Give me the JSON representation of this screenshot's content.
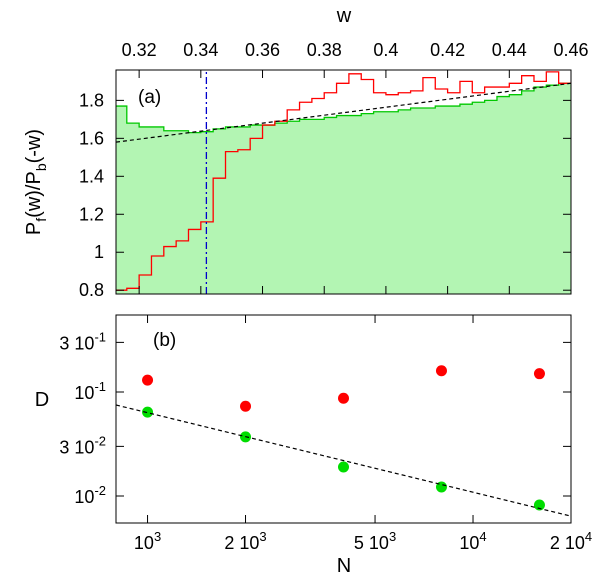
{
  "chart_data": [
    {
      "panel_label": "(a)",
      "type": "step",
      "xlabel": "w",
      "ylabel_main": "P",
      "ylabel_sub1": "f",
      "ylabel_mid": "(w)/P",
      "ylabel_sub2": "b",
      "ylabel_end": "(-w)",
      "xlim": [
        0.3125,
        0.46
      ],
      "ylim": [
        0.78,
        1.96
      ],
      "xticks": [
        0.32,
        0.34,
        0.36,
        0.38,
        0.4,
        0.42,
        0.44,
        0.46
      ],
      "xtick_labels": [
        "0.32",
        "0.34",
        "0.36",
        "0.38",
        "0.4",
        "0.42",
        "0.44",
        "0.46"
      ],
      "yticks": [
        0.8,
        1.0,
        1.2,
        1.4,
        1.6,
        1.8
      ],
      "ytick_labels": [
        "0.8",
        "1",
        "1.2",
        "1.4",
        "1.6",
        "1.8"
      ],
      "series": [
        {
          "style": "filled-step",
          "color": "#00c800",
          "fill": "#b3f5b3",
          "bin_edges": [
            0.3125,
            0.316,
            0.32,
            0.324,
            0.328,
            0.332,
            0.336,
            0.34,
            0.344,
            0.348,
            0.352,
            0.356,
            0.36,
            0.364,
            0.368,
            0.372,
            0.376,
            0.38,
            0.384,
            0.388,
            0.392,
            0.396,
            0.4,
            0.404,
            0.408,
            0.412,
            0.416,
            0.42,
            0.424,
            0.428,
            0.432,
            0.436,
            0.44,
            0.444,
            0.448,
            0.452,
            0.456,
            0.46
          ],
          "values": [
            1.77,
            1.68,
            1.66,
            1.66,
            1.64,
            1.64,
            1.63,
            1.635,
            1.65,
            1.66,
            1.66,
            1.67,
            1.67,
            1.68,
            1.69,
            1.7,
            1.7,
            1.71,
            1.72,
            1.72,
            1.73,
            1.74,
            1.74,
            1.75,
            1.76,
            1.76,
            1.77,
            1.77,
            1.78,
            1.79,
            1.8,
            1.82,
            1.83,
            1.85,
            1.87,
            1.88,
            1.89
          ]
        },
        {
          "style": "step",
          "color": "#ff0000",
          "bin_edges": [
            0.3125,
            0.316,
            0.32,
            0.324,
            0.328,
            0.332,
            0.336,
            0.34,
            0.344,
            0.348,
            0.352,
            0.356,
            0.36,
            0.364,
            0.368,
            0.372,
            0.376,
            0.38,
            0.384,
            0.388,
            0.392,
            0.396,
            0.4,
            0.404,
            0.408,
            0.412,
            0.416,
            0.42,
            0.424,
            0.428,
            0.432,
            0.436,
            0.44,
            0.444,
            0.448,
            0.452,
            0.456,
            0.46
          ],
          "values": [
            0.8,
            0.81,
            0.88,
            0.98,
            1.03,
            1.06,
            1.12,
            1.16,
            1.39,
            1.53,
            1.54,
            1.6,
            1.67,
            1.69,
            1.75,
            1.79,
            1.81,
            1.84,
            1.89,
            1.94,
            1.91,
            1.84,
            1.83,
            1.84,
            1.85,
            1.92,
            1.86,
            1.84,
            1.9,
            1.84,
            1.87,
            1.87,
            1.89,
            1.93,
            1.9,
            1.95,
            1.89
          ]
        },
        {
          "style": "dashed-line",
          "color": "#000000",
          "x": [
            0.3125,
            0.46
          ],
          "y": [
            1.58,
            1.89
          ]
        },
        {
          "style": "dash-dot-vertical",
          "color": "#0000cc",
          "x": [
            0.3418,
            0.3418
          ],
          "y": [
            0.78,
            1.96
          ]
        }
      ]
    },
    {
      "panel_label": "(b)",
      "type": "scatter",
      "scale": "log-log",
      "xlabel": "N",
      "ylabel": "D",
      "xlim": [
        800,
        20000
      ],
      "ylim": [
        0.0055,
        0.55
      ],
      "xticks": [
        1000,
        2000,
        5000,
        10000,
        20000
      ],
      "xtick_labels": [
        {
          "base": "10",
          "exp": "3"
        },
        {
          "base": "2 10",
          "exp": "3"
        },
        {
          "base": "5 10",
          "exp": "3"
        },
        {
          "base": "10",
          "exp": "4"
        },
        {
          "base": "2 10",
          "exp": "4"
        }
      ],
      "yticks": [
        0.01,
        0.03,
        0.1,
        0.3
      ],
      "ytick_labels": [
        {
          "base": "10",
          "exp": "-2"
        },
        {
          "base": "3 10",
          "exp": "-2"
        },
        {
          "base": "10",
          "exp": "-1"
        },
        {
          "base": "3 10",
          "exp": "-1"
        }
      ],
      "series": [
        {
          "style": "markers",
          "color": "#ff0000",
          "x": [
            1000,
            2000,
            4000,
            8000,
            16000
          ],
          "y": [
            0.13,
            0.073,
            0.087,
            0.16,
            0.15
          ]
        },
        {
          "style": "markers",
          "color": "#00dd00",
          "x": [
            1000,
            2000,
            4000,
            8000,
            16000
          ],
          "y": [
            0.064,
            0.037,
            0.019,
            0.0122,
            0.0082
          ]
        },
        {
          "style": "dashed-line",
          "color": "#000000",
          "x": [
            800,
            20000
          ],
          "y": [
            0.075,
            0.0064
          ]
        }
      ]
    }
  ]
}
